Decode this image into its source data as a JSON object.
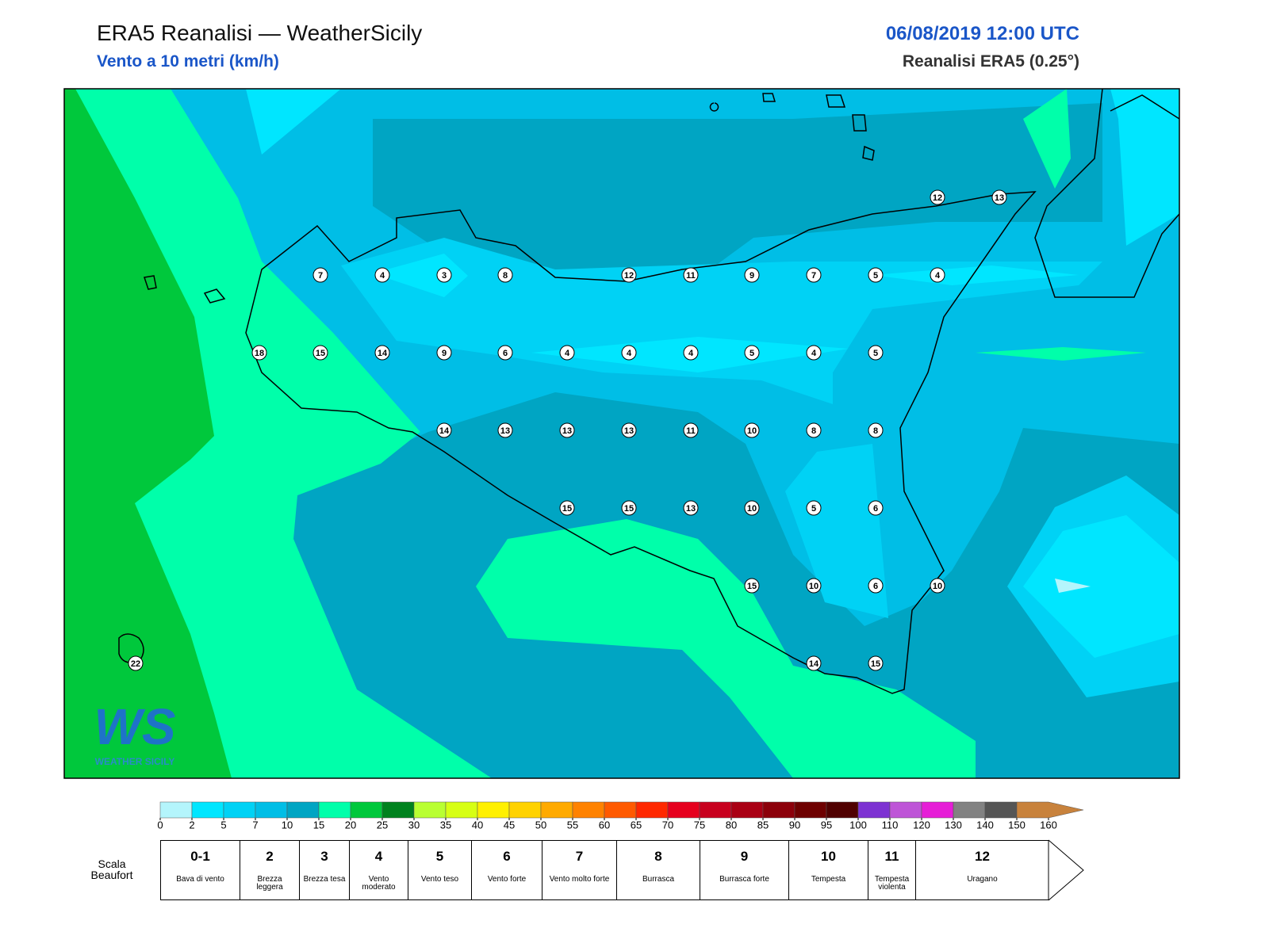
{
  "header": {
    "title": "ERA5 Reanalisi — WeatherSicily",
    "subtitle": "Vento a 10 metri (km/h)",
    "datetime": "06/08/2019 12:00 UTC",
    "source": "Reanalisi ERA5 (0.25°)"
  },
  "stations": [
    12,
    13,
    7,
    4,
    3,
    8,
    12,
    11,
    9,
    7,
    5,
    4,
    18,
    15,
    14,
    9,
    6,
    4,
    4,
    4,
    5,
    4,
    5,
    14,
    13,
    13,
    13,
    11,
    10,
    8,
    8,
    15,
    15,
    13,
    10,
    5,
    6,
    15,
    10,
    6,
    10,
    14,
    15,
    22
  ],
  "colorbar": {
    "ticks": [
      0,
      2,
      5,
      7,
      10,
      15,
      20,
      25,
      30,
      35,
      40,
      45,
      50,
      55,
      60,
      65,
      70,
      75,
      80,
      85,
      90,
      95,
      100,
      110,
      120,
      130,
      140,
      150,
      160
    ],
    "colors": [
      "#b4f5fc",
      "#00e6ff",
      "#00d2f5",
      "#00bee6",
      "#00a5c3",
      "#00ffaa",
      "#00c83c",
      "#00821e",
      "#b9ff32",
      "#d7ff14",
      "#fff000",
      "#ffd200",
      "#ffaa00",
      "#ff8200",
      "#ff5a00",
      "#ff2800",
      "#e6001e",
      "#c8001e",
      "#aa0014",
      "#8c000a",
      "#6e0000",
      "#500000",
      "#7d32d2",
      "#be55d7",
      "#e61ed7",
      "#828282",
      "#555555",
      "#c8823c"
    ]
  },
  "beaufort": {
    "label": "Scala Beaufort",
    "levels": [
      {
        "force": "0-1",
        "name": "Bava di vento"
      },
      {
        "force": 2,
        "name": "Brezza leggera"
      },
      {
        "force": 3,
        "name": "Brezza tesa"
      },
      {
        "force": 4,
        "name": "Vento moderato"
      },
      {
        "force": 5,
        "name": "Vento teso"
      },
      {
        "force": 6,
        "name": "Vento forte"
      },
      {
        "force": 7,
        "name": "Vento molto forte"
      },
      {
        "force": 8,
        "name": "Burrasca"
      },
      {
        "force": 9,
        "name": "Burrasca forte"
      },
      {
        "force": 10,
        "name": "Tempesta"
      },
      {
        "force": 11,
        "name": "Tempesta violenta"
      },
      {
        "force": 12,
        "name": "Uragano"
      }
    ]
  },
  "logo": {
    "mark": "WS",
    "name": "WEATHER SICILY"
  }
}
